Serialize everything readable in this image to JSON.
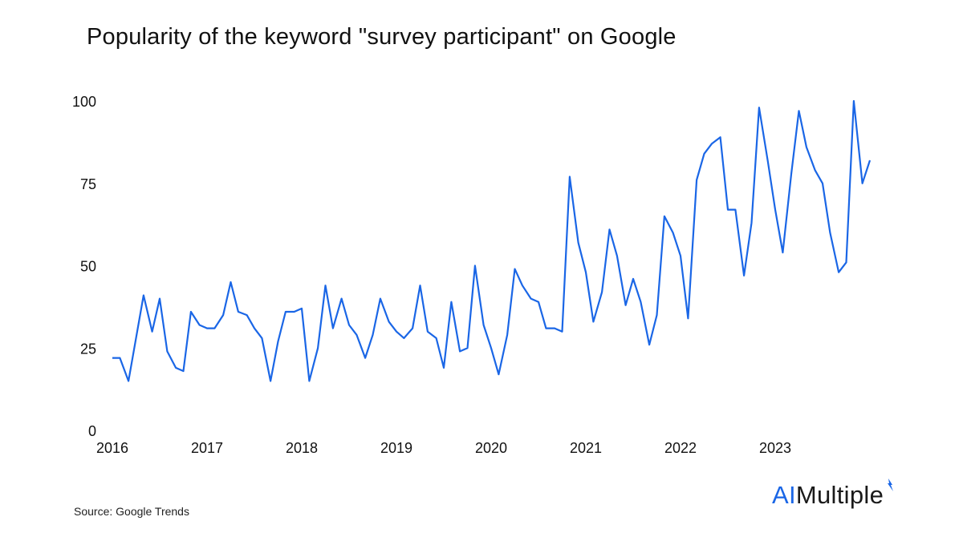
{
  "title": "Popularity of the keyword \"survey participant\" on Google",
  "source": "Source: Google Trends",
  "brand": {
    "accent": "AI",
    "rest": "Multiple",
    "icon": "aimultiple-logo-icon"
  },
  "colors": {
    "line": "#1a66e6",
    "brand_accent": "#1a66e6",
    "text": "#111111"
  },
  "chart_data": {
    "type": "line",
    "title": "Popularity of the keyword \"survey participant\" on Google",
    "xlabel": "",
    "ylabel": "",
    "grid": false,
    "legend": "none",
    "ylim": [
      0,
      100
    ],
    "yticks": [
      0,
      25,
      50,
      75,
      100
    ],
    "xlim": [
      2016.0,
      2024.0
    ],
    "xticks": [
      2016,
      2017,
      2018,
      2019,
      2020,
      2021,
      2022,
      2023
    ],
    "series": [
      {
        "x": [
          2016.0,
          2016.08,
          2016.17,
          2016.25,
          2016.33,
          2016.42,
          2016.5,
          2016.58,
          2016.67,
          2016.75,
          2016.83,
          2016.92,
          2017.0,
          2017.08,
          2017.17,
          2017.25,
          2017.33,
          2017.42,
          2017.5,
          2017.58,
          2017.67,
          2017.75,
          2017.83,
          2017.92,
          2018.0,
          2018.08,
          2018.17,
          2018.25,
          2018.33,
          2018.42,
          2018.5,
          2018.58,
          2018.67,
          2018.75,
          2018.83,
          2018.92,
          2019.0,
          2019.08,
          2019.17,
          2019.25,
          2019.33,
          2019.42,
          2019.5,
          2019.58,
          2019.67,
          2019.75,
          2019.83,
          2019.92,
          2020.0,
          2020.08,
          2020.17,
          2020.25,
          2020.33,
          2020.42,
          2020.5,
          2020.58,
          2020.67,
          2020.75,
          2020.83,
          2020.92,
          2021.0,
          2021.08,
          2021.17,
          2021.25,
          2021.33,
          2021.42,
          2021.5,
          2021.58,
          2021.67,
          2021.75,
          2021.83,
          2021.92,
          2022.0,
          2022.08,
          2022.17,
          2022.25,
          2022.33,
          2022.42,
          2022.5,
          2022.58,
          2022.67,
          2022.75,
          2022.83,
          2022.92,
          2023.0,
          2023.08,
          2023.17,
          2023.25,
          2023.33,
          2023.42,
          2023.5,
          2023.58,
          2023.67,
          2023.75,
          2023.83,
          2023.92,
          2024.0
        ],
        "values": [
          22,
          22,
          15,
          28,
          41,
          30,
          40,
          24,
          19,
          18,
          36,
          32,
          31,
          31,
          35,
          45,
          36,
          35,
          31,
          28,
          15,
          27,
          36,
          36,
          37,
          15,
          25,
          44,
          31,
          40,
          32,
          29,
          22,
          29,
          40,
          33,
          30,
          28,
          31,
          44,
          30,
          28,
          19,
          39,
          24,
          25,
          50,
          32,
          25,
          17,
          29,
          49,
          44,
          40,
          39,
          31,
          31,
          30,
          77,
          57,
          48,
          33,
          42,
          61,
          53,
          38,
          46,
          39,
          26,
          35,
          65,
          60,
          53,
          34,
          76,
          84,
          87,
          89,
          67,
          67,
          47,
          63,
          98,
          82,
          67,
          54,
          78,
          97,
          86,
          79,
          75,
          60,
          48,
          51,
          100,
          75,
          82
        ]
      }
    ]
  }
}
